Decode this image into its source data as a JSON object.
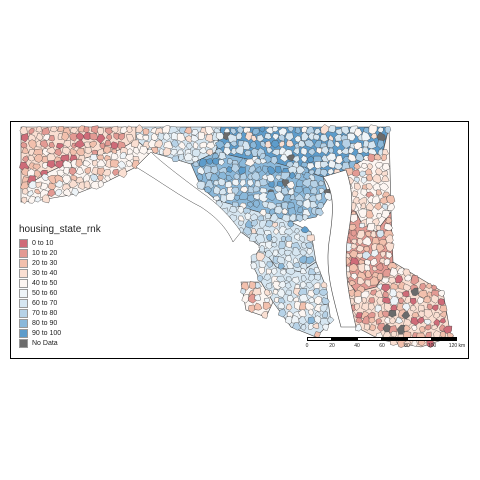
{
  "legend": {
    "title": "housing_state_rnk",
    "items": [
      {
        "label": "0 to 10",
        "color": "#cf6b78"
      },
      {
        "label": "10 to 20",
        "color": "#e39a93"
      },
      {
        "label": "20 to 30",
        "color": "#f2c0ad"
      },
      {
        "label": "30 to 40",
        "color": "#fadfd2"
      },
      {
        "label": "40 to 50",
        "color": "#fdf6f2"
      },
      {
        "label": "50 to 60",
        "color": "#eef4f8"
      },
      {
        "label": "60 to 70",
        "color": "#d6e6f1"
      },
      {
        "label": "70 to 80",
        "color": "#b6d2e7"
      },
      {
        "label": "80 to 90",
        "color": "#8ab8da"
      },
      {
        "label": "90 to 100",
        "color": "#5d9ccb"
      },
      {
        "label": "No Data",
        "color": "#6b6b6b"
      }
    ]
  },
  "scalebar": {
    "ticks": [
      "0",
      "20",
      "40",
      "60",
      "80",
      "100",
      "120 km"
    ]
  },
  "colors": {
    "border": "#444444",
    "frame": "#000000",
    "background": "#ffffff"
  }
}
